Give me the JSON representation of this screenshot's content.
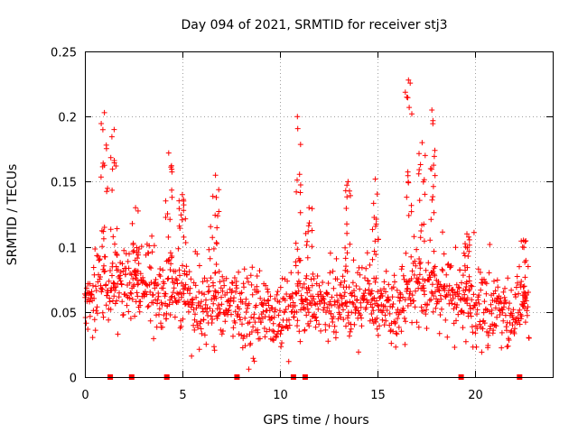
{
  "chart_data": {
    "type": "scatter",
    "title": "Day 094 of 2021, SRMTID for receiver stj3",
    "xlabel": "GPS time / hours",
    "ylabel": "SRMTID / TECUs",
    "xlim": [
      0,
      24
    ],
    "ylim": [
      0,
      0.25
    ],
    "grid": true,
    "marker": "+",
    "color": "#ff0000",
    "x_ticks": [
      0,
      5,
      10,
      15,
      20
    ],
    "x_tick_labels": [
      "0",
      "5",
      "10",
      "15",
      "20"
    ],
    "y_ticks": [
      0,
      0.05,
      0.1,
      0.15,
      0.2,
      0.25
    ],
    "y_tick_labels": [
      "0",
      "0.05",
      "0.1",
      "0.15",
      "0.2",
      "0.25"
    ],
    "baseline_markers_hours": [
      1.3,
      2.4,
      4.2,
      7.8,
      10.7,
      11.3,
      19.3,
      22.3
    ],
    "series": [
      {
        "name": "SRMTID",
        "baseline_by_hour": [
          [
            0,
            0.055
          ],
          [
            1,
            0.07
          ],
          [
            2,
            0.065
          ],
          [
            3,
            0.07
          ],
          [
            4,
            0.065
          ],
          [
            5,
            0.065
          ],
          [
            6,
            0.05
          ],
          [
            7,
            0.055
          ],
          [
            8,
            0.05
          ],
          [
            9,
            0.05
          ],
          [
            10,
            0.045
          ],
          [
            11,
            0.055
          ],
          [
            12,
            0.055
          ],
          [
            13,
            0.06
          ],
          [
            14,
            0.065
          ],
          [
            15,
            0.06
          ],
          [
            16,
            0.05
          ],
          [
            17,
            0.07
          ],
          [
            18,
            0.07
          ],
          [
            19,
            0.06
          ],
          [
            20,
            0.055
          ],
          [
            21,
            0.05
          ],
          [
            22,
            0.045
          ],
          [
            22.8,
            0.05
          ]
        ],
        "bursts": [
          {
            "center_hour": 1.0,
            "peak": 0.203
          },
          {
            "center_hour": 1.5,
            "peak": 0.19
          },
          {
            "center_hour": 2.6,
            "peak": 0.13
          },
          {
            "center_hour": 4.3,
            "peak": 0.172
          },
          {
            "center_hour": 5.0,
            "peak": 0.14
          },
          {
            "center_hour": 6.7,
            "peak": 0.155
          },
          {
            "center_hour": 10.9,
            "peak": 0.2
          },
          {
            "center_hour": 11.5,
            "peak": 0.13
          },
          {
            "center_hour": 13.5,
            "peak": 0.15
          },
          {
            "center_hour": 14.9,
            "peak": 0.152
          },
          {
            "center_hour": 16.6,
            "peak": 0.228
          },
          {
            "center_hour": 17.3,
            "peak": 0.18
          },
          {
            "center_hour": 17.8,
            "peak": 0.205
          },
          {
            "center_hour": 19.6,
            "peak": 0.11
          },
          {
            "center_hour": 22.5,
            "peak": 0.105
          }
        ]
      }
    ]
  }
}
